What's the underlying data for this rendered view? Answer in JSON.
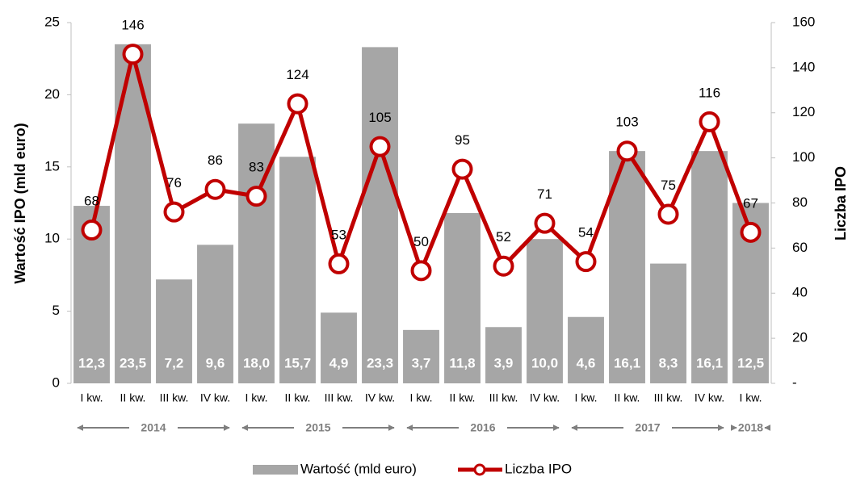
{
  "chart_data": {
    "type": "bar_line",
    "categories": [
      "I kw.",
      "II kw.",
      "III kw.",
      "IV kw.",
      "I kw.",
      "II kw.",
      "III kw.",
      "IV kw.",
      "I kw.",
      "II kw.",
      "III kw.",
      "IV kw.",
      "I kw.",
      "II kw.",
      "III kw.",
      "IV kw.",
      "I kw."
    ],
    "x_groups": [
      "2014",
      "2015",
      "2016",
      "2017",
      "2018"
    ],
    "series": [
      {
        "name": "Wartość (mld euro)",
        "type": "bar",
        "color": "#a6a6a6",
        "values": [
          12.3,
          23.5,
          7.2,
          9.6,
          18.0,
          15.7,
          4.9,
          23.3,
          3.7,
          11.8,
          3.9,
          10.0,
          4.6,
          16.1,
          8.3,
          16.1,
          12.5
        ],
        "value_labels": [
          "12,3",
          "23,5",
          "7,2",
          "9,6",
          "18,0",
          "15,7",
          "4,9",
          "23,3",
          "3,7",
          "11,8",
          "3,9",
          "10,0",
          "4,6",
          "16,1",
          "8,3",
          "16,1",
          "12,5"
        ]
      },
      {
        "name": "Liczba IPO",
        "type": "line",
        "axis": "y2",
        "color": "#c00000",
        "values": [
          68,
          146,
          76,
          86,
          83,
          124,
          53,
          105,
          50,
          95,
          52,
          71,
          54,
          103,
          75,
          116,
          67
        ]
      }
    ],
    "ylabel": "Wartość IPO (mld euro)",
    "y2label": "Liczba IPO",
    "ylim": [
      0,
      25
    ],
    "yticks": [
      0,
      5,
      10,
      15,
      20,
      25
    ],
    "y2lim": [
      0,
      160
    ],
    "y2ticks": [
      {
        "value": 0,
        "label": "-"
      },
      20,
      40,
      60,
      80,
      100,
      120,
      140,
      160
    ],
    "legend": "bottom"
  }
}
